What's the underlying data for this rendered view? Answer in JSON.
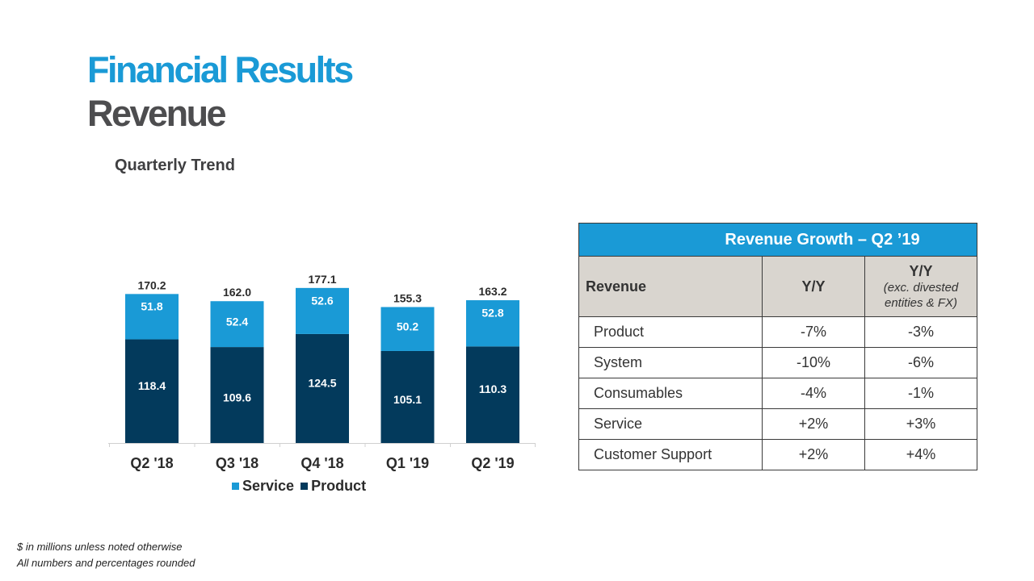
{
  "header": {
    "title": "Financial Results",
    "subtitle": "Revenue",
    "section": "Quarterly Trend"
  },
  "chart_data": {
    "type": "bar",
    "stacked": true,
    "title": "Quarterly Trend",
    "categories": [
      "Q2 '18",
      "Q3 '18",
      "Q4 '18",
      "Q1 '19",
      "Q2 '19"
    ],
    "series": [
      {
        "name": "Product",
        "values": [
          118.4,
          109.6,
          124.5,
          105.1,
          110.3
        ],
        "color": "#033a5c"
      },
      {
        "name": "Service",
        "values": [
          51.8,
          52.4,
          52.6,
          50.2,
          52.8
        ],
        "color": "#1a9ad6"
      }
    ],
    "totals": [
      170.2,
      162.0,
      177.1,
      155.3,
      163.2
    ],
    "total_labels": [
      "170.2",
      "162.0",
      "177.1",
      "155.3",
      "163.2"
    ],
    "legend": [
      "Service",
      "Product"
    ],
    "legend_position": "bottom",
    "xlabel": "",
    "ylabel": "",
    "grid": false
  },
  "growth_table": {
    "title": "Revenue Growth – Q2 ’19",
    "col1": "Revenue",
    "col2": "Y/Y",
    "col3_line1": "Y/Y",
    "col3_line2": "(exc. divested",
    "col3_line3": "entities & FX)",
    "rows": [
      {
        "name": "Product",
        "yy": "-7%",
        "yy_exc": "-3%"
      },
      {
        "name": "System",
        "yy": "-10%",
        "yy_exc": "-6%"
      },
      {
        "name": "Consumables",
        "yy": "-4%",
        "yy_exc": "-1%"
      },
      {
        "name": "Service",
        "yy": "+2%",
        "yy_exc": "+3%"
      },
      {
        "name": "Customer Support",
        "yy": "+2%",
        "yy_exc": "+4%"
      }
    ]
  },
  "footnotes": [
    "$ in millions unless noted otherwise",
    "All numbers and percentages rounded"
  ]
}
